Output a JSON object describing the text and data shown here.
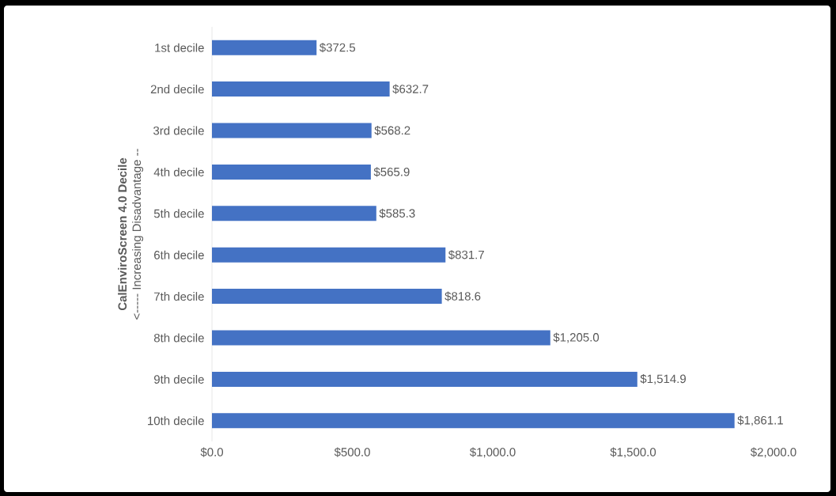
{
  "chart_data": {
    "type": "bar",
    "orientation": "horizontal",
    "ylabel": "CalEnviroScreen 4.0 Decile",
    "annotations": [
      "<----- Increasing Disadvantage --"
    ],
    "categories": [
      "1st decile",
      "2nd decile",
      "3rd decile",
      "4th decile",
      "5th decile",
      "6th decile",
      "7th decile",
      "8th decile",
      "9th decile",
      "10th decile"
    ],
    "values": [
      372.5,
      632.7,
      568.2,
      565.9,
      585.3,
      831.7,
      818.6,
      1205.0,
      1514.9,
      1861.1
    ],
    "value_labels": [
      "$372.5",
      "$632.7",
      "$568.2",
      "$565.9",
      "$585.3",
      "$831.7",
      "$818.6",
      "$1,205.0",
      "$1,514.9",
      "$1,861.1"
    ],
    "color": "#4472c4",
    "xlim": [
      0,
      2000
    ],
    "xticks": [
      {
        "value": 0,
        "label": "$0.0"
      },
      {
        "value": 500,
        "label": "$500.0"
      },
      {
        "value": 1000,
        "label": "$1,000.0"
      },
      {
        "value": 1500,
        "label": "$1,500.0"
      },
      {
        "value": 2000,
        "label": "$2,000.0"
      }
    ]
  }
}
